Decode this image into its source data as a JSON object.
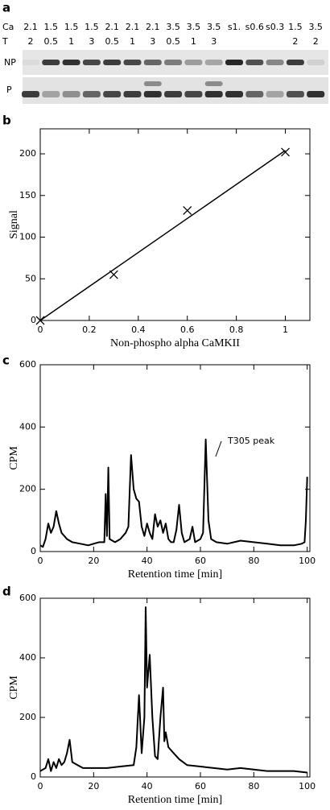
{
  "gel": {
    "label": "a",
    "row_labels": [
      "Ca",
      "T"
    ],
    "ca": [
      2.1,
      1.5,
      1.5,
      1.5,
      2.1,
      2.1,
      2.1,
      3.5,
      3.5,
      3.5,
      "s1.",
      "s0.6",
      "s0.3",
      1.5,
      3.5
    ],
    "t": [
      2,
      0.5,
      1,
      3,
      0.5,
      1,
      3,
      0.5,
      1,
      3,
      null,
      null,
      null,
      2,
      2
    ],
    "strips": [
      "NP",
      "P"
    ]
  },
  "chart_data": [
    {
      "type": "scatter",
      "label": "b",
      "xlabel": "Non-phospho alpha CaMKII",
      "ylabel": "Signal",
      "xlim": [
        0,
        1.1
      ],
      "ylim": [
        0,
        230
      ],
      "xticks": [
        0,
        0.2,
        0.4,
        0.6,
        0.8,
        1
      ],
      "yticks": [
        0,
        50,
        100,
        150,
        200
      ],
      "series": [
        {
          "marker": "x",
          "color": "#000000",
          "x": [
            0,
            0.3,
            0.6,
            1
          ],
          "values": [
            0,
            55,
            132,
            202
          ]
        },
        {
          "marker": "none",
          "color": "#000000",
          "x": [
            0,
            1
          ],
          "values": [
            0,
            204
          ]
        }
      ]
    },
    {
      "type": "line",
      "label": "c",
      "xlabel": "Retention time [min]",
      "ylabel": "CPM",
      "xlim": [
        0,
        101
      ],
      "ylim": [
        0,
        600
      ],
      "xticks": [
        0,
        20,
        40,
        60,
        80,
        100
      ],
      "yticks": [
        0,
        200,
        400,
        600
      ],
      "annotation": "T305 peak",
      "series": [
        {
          "color": "#000000",
          "x": [
            0,
            1,
            2,
            3,
            4,
            5,
            6,
            7,
            8,
            9,
            10,
            12,
            15,
            18,
            20,
            22,
            24,
            24.5,
            25,
            25.5,
            26,
            28,
            30,
            32,
            33,
            34,
            35,
            36,
            37,
            38,
            39,
            40,
            41,
            42,
            43,
            44,
            45,
            46,
            47,
            48,
            49,
            50,
            51,
            52,
            53,
            54,
            56,
            57,
            58,
            60,
            61,
            62,
            63,
            64,
            66,
            70,
            75,
            80,
            85,
            90,
            95,
            98,
            99,
            99.5,
            100
          ],
          "values": [
            20,
            15,
            40,
            90,
            60,
            80,
            130,
            90,
            60,
            50,
            40,
            30,
            25,
            20,
            25,
            30,
            30,
            185,
            50,
            270,
            40,
            30,
            40,
            60,
            80,
            310,
            200,
            170,
            160,
            80,
            50,
            90,
            60,
            40,
            120,
            80,
            100,
            60,
            90,
            40,
            30,
            30,
            70,
            150,
            60,
            30,
            40,
            80,
            30,
            40,
            60,
            360,
            100,
            40,
            30,
            25,
            35,
            30,
            25,
            20,
            20,
            25,
            30,
            100,
            240
          ]
        }
      ]
    },
    {
      "type": "line",
      "label": "d",
      "xlabel": "Retention time [min]",
      "ylabel": "CPM",
      "xlim": [
        0,
        101
      ],
      "ylim": [
        0,
        600
      ],
      "xticks": [
        0,
        20,
        40,
        60,
        80,
        100
      ],
      "yticks": [
        0,
        200,
        400,
        600
      ],
      "series": [
        {
          "color": "#000000",
          "x": [
            0,
            2,
            3,
            4,
            5,
            6,
            7,
            8,
            9,
            10,
            11,
            12,
            14,
            16,
            20,
            25,
            30,
            35,
            36,
            37,
            38,
            39,
            39.5,
            40,
            41,
            42,
            43,
            44,
            45,
            46,
            46.5,
            47,
            48,
            50,
            52,
            55,
            60,
            65,
            70,
            75,
            80,
            85,
            90,
            95,
            100
          ],
          "values": [
            20,
            30,
            60,
            20,
            50,
            30,
            60,
            40,
            50,
            80,
            125,
            50,
            40,
            30,
            30,
            30,
            35,
            40,
            100,
            275,
            80,
            200,
            570,
            300,
            410,
            200,
            70,
            60,
            200,
            300,
            120,
            150,
            100,
            80,
            60,
            40,
            35,
            30,
            25,
            30,
            25,
            20,
            20,
            20,
            15
          ]
        }
      ]
    }
  ]
}
